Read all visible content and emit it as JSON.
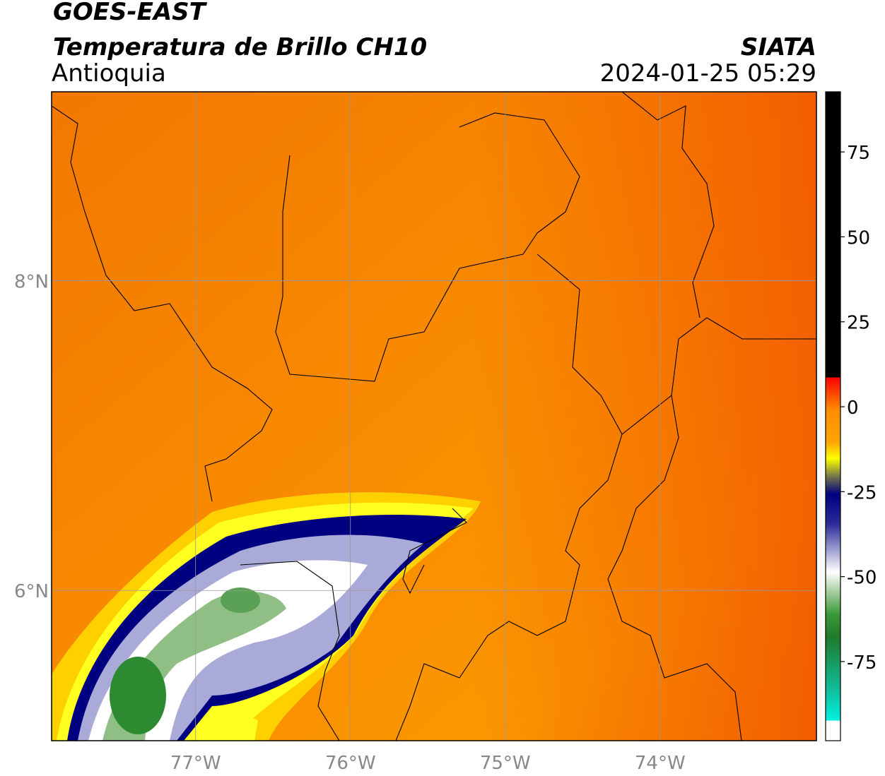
{
  "header": {
    "satellite": "GOES-EAST",
    "product": "Temperatura de Brillo CH10",
    "region": "Antioquia",
    "source": "SIATA",
    "timestamp": "2024-01-25 05:29"
  },
  "map": {
    "lonlim": [
      -77.93,
      -72.99
    ],
    "latlim": [
      5.03,
      9.22
    ],
    "grid": true,
    "lonticks": [
      {
        "value": -77,
        "label": "77°W"
      },
      {
        "value": -76,
        "label": "76°W"
      },
      {
        "value": -75,
        "label": "75°W"
      },
      {
        "value": -74,
        "label": "74°W"
      }
    ],
    "latticks": [
      {
        "value": 8,
        "label": "8°N"
      },
      {
        "value": 6,
        "label": "6°N"
      }
    ]
  },
  "colorbar": {
    "lim": [
      -98.3,
      92.7
    ],
    "ticks": [
      -75,
      -50,
      -25,
      0,
      25,
      50,
      75
    ]
  }
}
